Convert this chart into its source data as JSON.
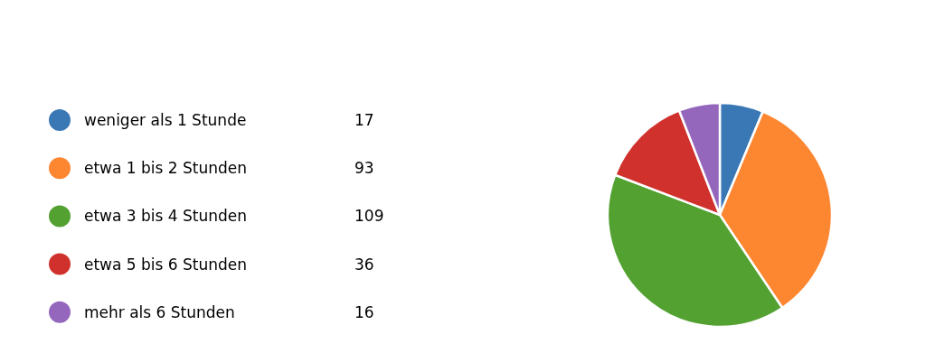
{
  "chart_data": {
    "type": "pie",
    "categories": [
      "weniger als 1 Stunde",
      "etwa 1 bis 2 Stunden",
      "etwa 3 bis 4 Stunden",
      "etwa 5 bis 6 Stunden",
      "mehr als 6 Stunden"
    ],
    "values": [
      17,
      93,
      109,
      36,
      16
    ],
    "colors": [
      "#3a78b5",
      "#fd8631",
      "#52a131",
      "#d0312d",
      "#9467bd"
    ],
    "legend": "left",
    "data_labels": true
  }
}
